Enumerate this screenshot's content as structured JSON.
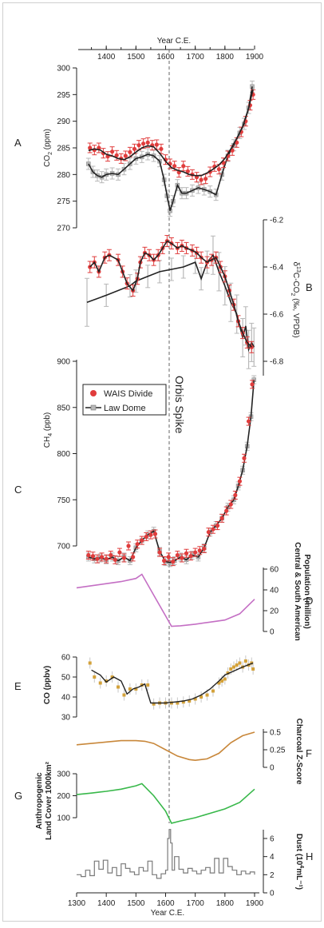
{
  "colors": {
    "wais": "#e03c3c",
    "law": "#222222",
    "law_err": "#b8b8b8",
    "population": "#c46fc4",
    "co_point": "#d4a23a",
    "charcoal": "#c8873a",
    "landcover": "#38b84a",
    "dust": "#7a7a7a",
    "axis": "#222222"
  },
  "annotation": "Orbis Spike",
  "top_axis": {
    "label": "Year C.E.",
    "ticks": [
      "1400",
      "1500",
      "1600",
      "1700",
      "1800",
      "1900"
    ]
  },
  "bottom_axis": {
    "label": "Year C.E.",
    "ticks": [
      "1300",
      "1400",
      "1500",
      "1600",
      "1700",
      "1800",
      "1900"
    ]
  },
  "legend": {
    "wais": "WAIS Divide",
    "law": "Law Dome"
  },
  "panels": {
    "A": {
      "letter": "A",
      "ylabel_main": "CO",
      "ylabel_sub": "2",
      "ylabel_end": " (ppm)",
      "ticks": [
        "300",
        "295",
        "290",
        "285",
        "280",
        "275",
        "270"
      ]
    },
    "B": {
      "letter": "B",
      "ylabel_pre": "δ",
      "ylabel_sup": "13",
      "ylabel_mid": "C-CO",
      "ylabel_sub": "2",
      "ylabel_end": " (‰, VPDB)",
      "ticks": [
        "-6.2",
        "-6.4",
        "-6.6",
        "-6.8"
      ]
    },
    "C": {
      "letter": "C",
      "ylabel_main": "CH",
      "ylabel_sub": "4",
      "ylabel_end": " (ppb)",
      "ticks": [
        "900",
        "850",
        "800",
        "750",
        "700"
      ]
    },
    "D": {
      "letter": "D",
      "ylabel1": "Central & South American",
      "ylabel2": "Population (million)",
      "ticks": [
        "60",
        "40",
        "20",
        "0"
      ]
    },
    "E": {
      "letter": "E",
      "ylabel": "CO (ppbv)",
      "ticks": [
        "60",
        "50",
        "40",
        "30"
      ]
    },
    "F": {
      "letter": "F",
      "ylabel": "Charcoal Z-Score",
      "ticks": [
        "0.5",
        "0.25",
        "0"
      ]
    },
    "G": {
      "letter": "G",
      "ylabel1": "Anthropogenic",
      "ylabel2": "Land Cover 1000km²",
      "ticks": [
        "300",
        "200",
        "100"
      ]
    },
    "H": {
      "letter": "H",
      "ylabel_pre": "Dust (10",
      "ylabel_sup": "4",
      "ylabel_end": "mL⁻¹)",
      "ticks": [
        "6",
        "4",
        "2",
        "0"
      ]
    }
  },
  "chart_data": [
    {
      "type": "line",
      "panel": "A",
      "xlim": [
        1300,
        1900
      ],
      "ylim": [
        270,
        300
      ],
      "series": [
        {
          "name": "WAIS Divide",
          "x": [
            1345,
            1360,
            1375,
            1390,
            1405,
            1420,
            1435,
            1450,
            1465,
            1480,
            1495,
            1510,
            1525,
            1540,
            1555,
            1570,
            1585,
            1600,
            1615,
            1630,
            1645,
            1660,
            1675,
            1690,
            1705,
            1720,
            1735,
            1750,
            1765,
            1780,
            1795,
            1810,
            1825,
            1840,
            1855,
            1870,
            1885,
            1895
          ],
          "y": [
            285,
            284.6,
            285,
            284,
            283.4,
            284.3,
            283.6,
            283,
            283.5,
            284.2,
            284.8,
            285.5,
            285.8,
            286,
            285.5,
            285.6,
            284.8,
            282.8,
            282,
            281.6,
            280.4,
            281.6,
            280.6,
            280,
            279.5,
            279,
            279.2,
            280.5,
            281.5,
            281,
            282.2,
            283.5,
            284.5,
            286,
            288,
            290,
            293,
            295
          ]
        },
        {
          "name": "Law Dome",
          "x": [
            1340,
            1355,
            1370,
            1385,
            1400,
            1420,
            1440,
            1460,
            1480,
            1500,
            1520,
            1540,
            1560,
            1580,
            1595,
            1605,
            1615,
            1625,
            1640,
            1655,
            1670,
            1690,
            1710,
            1730,
            1750,
            1770,
            1790,
            1810,
            1830,
            1850,
            1865,
            1880,
            1892
          ],
          "y": [
            282,
            280.5,
            279.8,
            279.5,
            280,
            280.2,
            280,
            281,
            282,
            283,
            283.3,
            283.8,
            283.5,
            282.5,
            279,
            276,
            273.2,
            275,
            278,
            276.5,
            276.5,
            277,
            277.5,
            277.2,
            276.8,
            276.2,
            280,
            283.5,
            285.5,
            287.8,
            289.5,
            292.5,
            296.5
          ]
        },
        {
          "name": "Spline",
          "x": [
            1340,
            1360,
            1380,
            1400,
            1420,
            1440,
            1460,
            1480,
            1500,
            1520,
            1540,
            1560,
            1580,
            1600,
            1620,
            1640,
            1660,
            1680,
            1700,
            1720,
            1740,
            1760,
            1780,
            1800,
            1820,
            1840,
            1860,
            1880,
            1895
          ],
          "y": [
            284.5,
            284.8,
            284.6,
            283.8,
            283.5,
            283,
            282.8,
            283.3,
            284.2,
            285,
            285.4,
            285.2,
            284,
            282.5,
            281.3,
            280.8,
            280.5,
            280,
            279.8,
            279.8,
            280.3,
            281,
            281.8,
            283,
            284.8,
            286.8,
            289,
            292.5,
            296
          ]
        }
      ]
    },
    {
      "type": "line",
      "panel": "B",
      "xlim": [
        1300,
        1900
      ],
      "ylim": [
        -6.85,
        -6.15
      ],
      "series": [
        {
          "name": "WAIS Divide",
          "x": [
            1345,
            1360,
            1375,
            1395,
            1410,
            1440,
            1455,
            1470,
            1490,
            1505,
            1515,
            1530,
            1545,
            1560,
            1575,
            1590,
            1605,
            1620,
            1640,
            1655,
            1670,
            1690,
            1705,
            1720,
            1740,
            1755,
            1770,
            1785,
            1800,
            1815,
            1830,
            1845,
            1860,
            1875,
            1890
          ],
          "y": [
            -6.4,
            -6.38,
            -6.42,
            -6.36,
            -6.35,
            -6.37,
            -6.42,
            -6.47,
            -6.5,
            -6.45,
            -6.38,
            -6.34,
            -6.35,
            -6.37,
            -6.35,
            -6.32,
            -6.29,
            -6.3,
            -6.32,
            -6.31,
            -6.32,
            -6.33,
            -6.34,
            -6.36,
            -6.38,
            -6.37,
            -6.36,
            -6.4,
            -6.44,
            -6.5,
            -6.56,
            -6.63,
            -6.68,
            -6.72,
            -6.74
          ]
        },
        {
          "name": "Law Dome",
          "x": [
            1335,
            1400,
            1480,
            1500,
            1540,
            1580,
            1620,
            1660,
            1700,
            1720,
            1740,
            1760,
            1780,
            1800,
            1820,
            1840,
            1860,
            1870,
            1880,
            1890,
            1898
          ],
          "y": [
            -6.55,
            -6.52,
            -6.48,
            -6.46,
            -6.44,
            -6.42,
            -6.41,
            -6.4,
            -6.38,
            -6.45,
            -6.38,
            -6.35,
            -6.42,
            -6.48,
            -6.55,
            -6.6,
            -6.7,
            -6.65,
            -6.75,
            -6.72,
            -6.74
          ]
        }
      ]
    },
    {
      "type": "line",
      "panel": "C",
      "xlim": [
        1300,
        1900
      ],
      "ylim": [
        680,
        900
      ],
      "series": [
        {
          "name": "WAIS Divide",
          "x": [
            1340,
            1355,
            1370,
            1385,
            1400,
            1415,
            1430,
            1445,
            1460,
            1475,
            1490,
            1505,
            1520,
            1535,
            1550,
            1565,
            1580,
            1595,
            1610,
            1625,
            1640,
            1655,
            1670,
            1685,
            1700,
            1715,
            1730,
            1745,
            1760,
            1775,
            1790,
            1805,
            1820,
            1835,
            1850,
            1865,
            1880,
            1892
          ],
          "y": [
            690,
            689,
            686,
            688,
            686,
            690,
            685,
            693,
            687,
            700,
            688,
            702,
            706,
            710,
            712,
            713,
            693,
            684,
            688,
            683,
            690,
            687,
            692,
            689,
            693,
            695,
            697,
            715,
            718,
            722,
            730,
            738,
            745,
            755,
            770,
            795,
            835,
            875
          ]
        },
        {
          "name": "Law Dome",
          "x": [
            1340,
            1360,
            1380,
            1400,
            1420,
            1440,
            1460,
            1480,
            1500,
            1520,
            1540,
            1560,
            1580,
            1600,
            1615,
            1630,
            1650,
            1670,
            1690,
            1710,
            1730,
            1750,
            1770,
            1790,
            1810,
            1830,
            1845,
            1860,
            1875,
            1888,
            1898
          ],
          "y": [
            688,
            686,
            687,
            685,
            688,
            684,
            688,
            684,
            698,
            706,
            712,
            716,
            694,
            683,
            682,
            684,
            688,
            685,
            690,
            688,
            698,
            715,
            722,
            730,
            742,
            750,
            765,
            782,
            808,
            840,
            880
          ]
        }
      ]
    },
    {
      "type": "line",
      "panel": "D",
      "xlim": [
        1300,
        1900
      ],
      "ylim": [
        0,
        60
      ],
      "series": [
        {
          "name": "Population",
          "x": [
            1300,
            1350,
            1400,
            1450,
            1500,
            1520,
            1560,
            1600,
            1620,
            1650,
            1700,
            1750,
            1800,
            1850,
            1900
          ],
          "y": [
            42,
            44,
            46,
            48,
            51,
            55,
            35,
            15,
            5,
            5.5,
            7,
            9,
            11,
            17,
            31
          ]
        }
      ]
    },
    {
      "type": "scatter",
      "panel": "E",
      "xlim": [
        1300,
        1900
      ],
      "ylim": [
        30,
        60
      ],
      "series": [
        {
          "name": "CO points",
          "x": [
            1345,
            1360,
            1380,
            1400,
            1420,
            1440,
            1460,
            1480,
            1500,
            1520,
            1540,
            1560,
            1580,
            1600,
            1620,
            1640,
            1660,
            1680,
            1700,
            1720,
            1740,
            1760,
            1780,
            1790,
            1800,
            1810,
            1820,
            1830,
            1840,
            1850,
            1860,
            1870,
            1880,
            1890,
            1895
          ],
          "y": [
            57,
            50,
            47,
            48,
            50,
            45,
            41,
            44,
            44,
            46,
            46,
            36.5,
            37,
            37,
            37,
            37,
            37.5,
            38,
            39,
            40,
            41,
            43,
            47,
            48,
            49,
            52,
            54,
            55,
            56,
            57,
            55,
            58,
            56,
            57,
            54
          ]
        },
        {
          "name": "Spline",
          "x": [
            1350,
            1380,
            1400,
            1425,
            1450,
            1470,
            1490,
            1510,
            1530,
            1550,
            1570,
            1600,
            1630,
            1660,
            1690,
            1720,
            1750,
            1780,
            1800,
            1830,
            1860,
            1895
          ],
          "y": [
            53.5,
            51,
            47.5,
            50,
            48,
            41.5,
            44,
            45,
            46.5,
            37,
            37,
            37,
            37.5,
            38,
            39,
            41,
            44,
            48,
            51,
            53,
            55,
            57
          ]
        }
      ]
    },
    {
      "type": "line",
      "panel": "F",
      "xlim": [
        1300,
        1900
      ],
      "ylim": [
        0,
        0.5
      ],
      "series": [
        {
          "name": "Charcoal",
          "x": [
            1300,
            1350,
            1400,
            1450,
            1500,
            1530,
            1560,
            1600,
            1640,
            1680,
            1700,
            1740,
            1780,
            1820,
            1860,
            1900
          ],
          "y": [
            0.32,
            0.34,
            0.36,
            0.38,
            0.38,
            0.37,
            0.34,
            0.25,
            0.16,
            0.11,
            0.1,
            0.12,
            0.2,
            0.35,
            0.45,
            0.5
          ]
        }
      ]
    },
    {
      "type": "line",
      "panel": "G",
      "xlim": [
        1300,
        1900
      ],
      "ylim": [
        50,
        300
      ],
      "series": [
        {
          "name": "Land cover",
          "x": [
            1300,
            1350,
            1400,
            1450,
            1500,
            1520,
            1560,
            1600,
            1620,
            1650,
            1700,
            1750,
            1800,
            1850,
            1900
          ],
          "y": [
            205,
            212,
            220,
            230,
            245,
            255,
            200,
            130,
            75,
            85,
            100,
            120,
            140,
            170,
            230
          ]
        }
      ]
    },
    {
      "type": "line",
      "panel": "H",
      "xlim": [
        1300,
        1900
      ],
      "ylim": [
        0,
        7
      ],
      "series": [
        {
          "name": "Dust",
          "x": [
            1300,
            1315,
            1330,
            1345,
            1360,
            1375,
            1390,
            1405,
            1420,
            1435,
            1450,
            1465,
            1480,
            1495,
            1510,
            1525,
            1540,
            1555,
            1570,
            1585,
            1600,
            1607,
            1612,
            1617,
            1622,
            1630,
            1645,
            1660,
            1675,
            1690,
            1705,
            1720,
            1735,
            1750,
            1765,
            1780,
            1795,
            1810,
            1825,
            1840,
            1855,
            1870,
            1885,
            1900
          ],
          "y": [
            2,
            1.8,
            2.5,
            1.9,
            3.5,
            2.6,
            3.6,
            2.2,
            2.8,
            1.9,
            3.2,
            2.7,
            2.3,
            2,
            2.8,
            2.4,
            3.5,
            2,
            1.6,
            2.1,
            2.5,
            6,
            7,
            5.5,
            2.5,
            4,
            2.6,
            2.2,
            2.7,
            2.4,
            2.1,
            2.5,
            2.8,
            2.2,
            3.8,
            2.2,
            3.8,
            2.9,
            2.5,
            2,
            2.4,
            2.1,
            2.3,
            2
          ]
        }
      ]
    }
  ]
}
